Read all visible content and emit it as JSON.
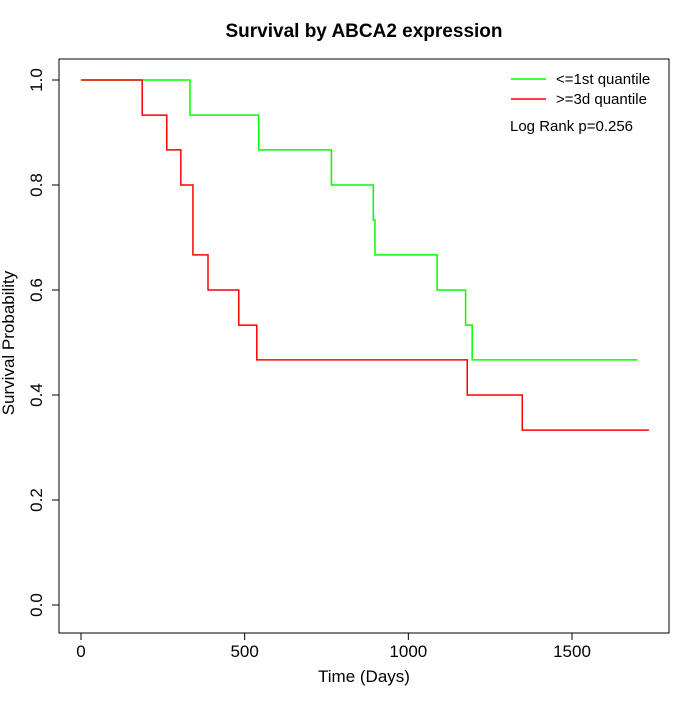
{
  "chart_data": {
    "type": "line",
    "title": "Survival by ABCA2 expression",
    "xlabel": "Time (Days)",
    "ylabel": "Survival Probability",
    "xlim": [
      0,
      1750
    ],
    "ylim": [
      0,
      1
    ],
    "x_ticks": [
      0,
      500,
      1000,
      1500
    ],
    "x_tick_labels": [
      "0",
      "500",
      "1000",
      "1500"
    ],
    "y_ticks": [
      0,
      0.2,
      0.4,
      0.6,
      0.8,
      1.0
    ],
    "y_tick_labels": [
      "0.0",
      "0.2",
      "0.4",
      "0.6",
      "0.8",
      "1.0"
    ],
    "grid": false,
    "legend_position": "top-right",
    "annotation": "Log Rank p=0.256",
    "series": [
      {
        "name": "<=1st quantile",
        "color": "#00ff00",
        "step": true,
        "points": [
          [
            0,
            1.0
          ],
          [
            333,
            0.933
          ],
          [
            543,
            0.867
          ],
          [
            765,
            0.8
          ],
          [
            893,
            0.733
          ],
          [
            898,
            0.667
          ],
          [
            1088,
            0.6
          ],
          [
            1175,
            0.533
          ],
          [
            1195,
            0.467
          ],
          [
            1700,
            0.467
          ]
        ]
      },
      {
        "name": ">=3d quantile",
        "color": "#ff0000",
        "step": true,
        "points": [
          [
            0,
            1.0
          ],
          [
            187,
            0.933
          ],
          [
            262,
            0.867
          ],
          [
            305,
            0.8
          ],
          [
            342,
            0.667
          ],
          [
            388,
            0.6
          ],
          [
            482,
            0.533
          ],
          [
            537,
            0.467
          ],
          [
            1180,
            0.4
          ],
          [
            1348,
            0.333
          ],
          [
            1735,
            0.333
          ]
        ]
      }
    ]
  }
}
